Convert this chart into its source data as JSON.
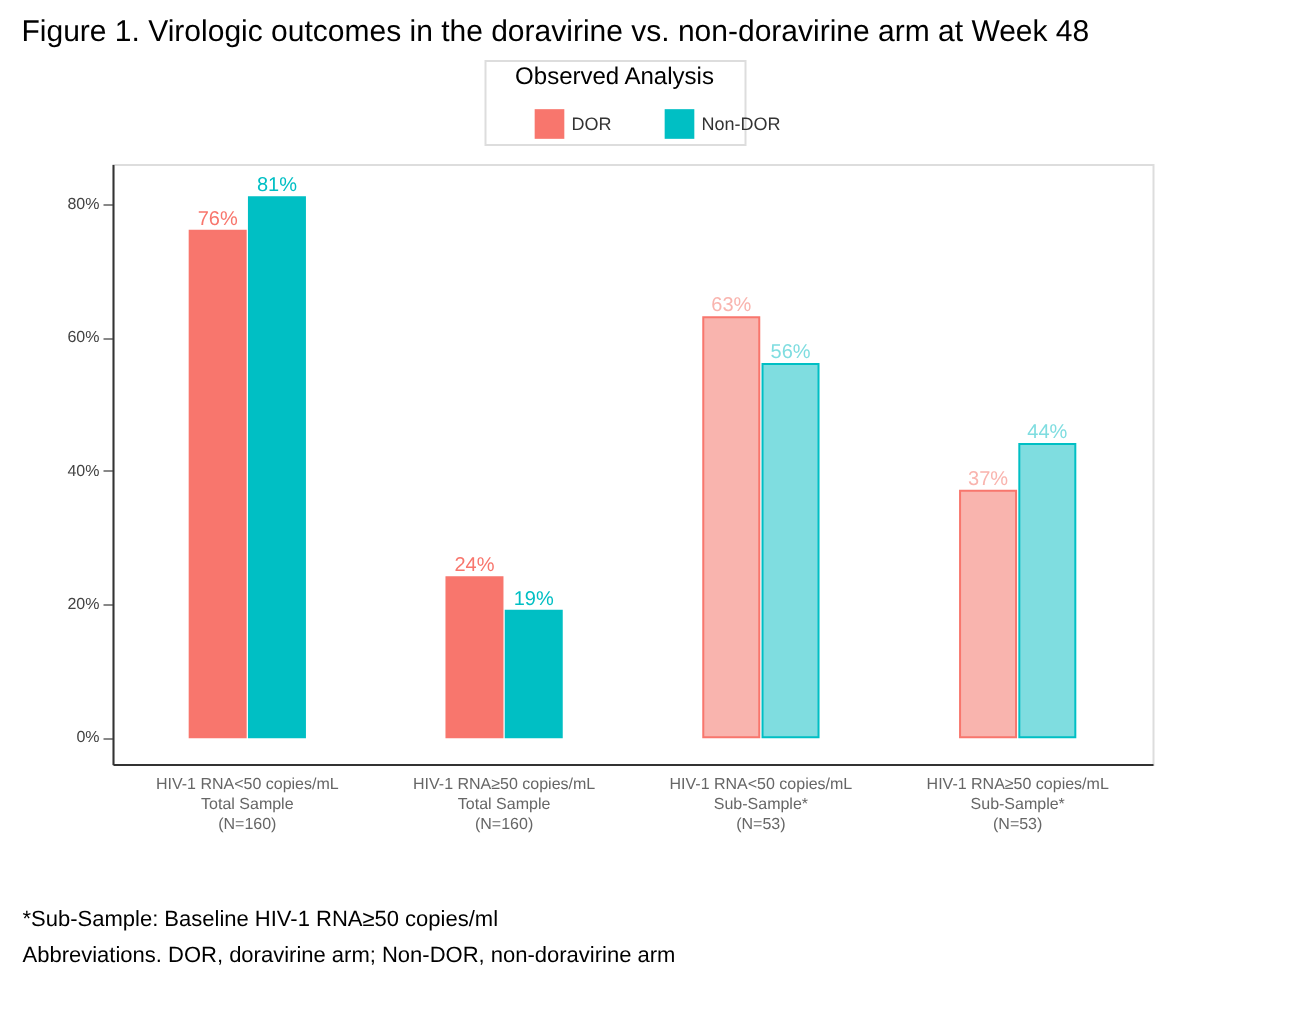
{
  "chart_data": {
    "type": "bar",
    "title": "Figure 1. Virologic outcomes in the doravirine vs. non-doravirine arm at Week 48",
    "legend_title": "Observed Analysis",
    "legend": "top",
    "categories": [
      "HIV-1 RNA<50 copies/mL\nTotal Sample\n(N=160)",
      "HIV-1 RNA≥50 copies/mL\nTotal Sample\n(N=160)",
      "HIV-1 RNA<50 copies/mL\nSub-Sample*\n(N=53)",
      "HIV-1 RNA≥50 copies/mL\nSub-Sample*\n(N=53)"
    ],
    "series": [
      {
        "name": "DOR",
        "color": "#f8766d",
        "colors": [
          "#f8766d",
          "#f8766d",
          "#f9b4ae",
          "#f9b4ae"
        ],
        "values": [
          76,
          24,
          63,
          37
        ],
        "value_labels": [
          "76%",
          "24%",
          "63%",
          "37%"
        ]
      },
      {
        "name": "Non-DOR",
        "color": "#00bfc4",
        "colors": [
          "#00bfc4",
          "#00bfc4",
          "#7fdde0",
          "#7fdde0"
        ],
        "values": [
          81,
          19,
          56,
          44
        ],
        "value_labels": [
          "81%",
          "19%",
          "56%",
          "44%"
        ]
      }
    ],
    "ylim": [
      -4,
      86
    ],
    "yticks": [
      {
        "value": 0,
        "label": "0%"
      },
      {
        "value": 20,
        "label": "20%"
      },
      {
        "value": 40,
        "label": "40%"
      },
      {
        "value": 60,
        "label": "60%"
      },
      {
        "value": 80,
        "label": "80%"
      }
    ],
    "grid": false,
    "annotations": [
      "*Sub-Sample: Baseline HIV-1 RNA≥50 copies/ml",
      "Abbreviations. DOR, doravirine arm; Non-DOR, non-doravirine arm"
    ]
  }
}
